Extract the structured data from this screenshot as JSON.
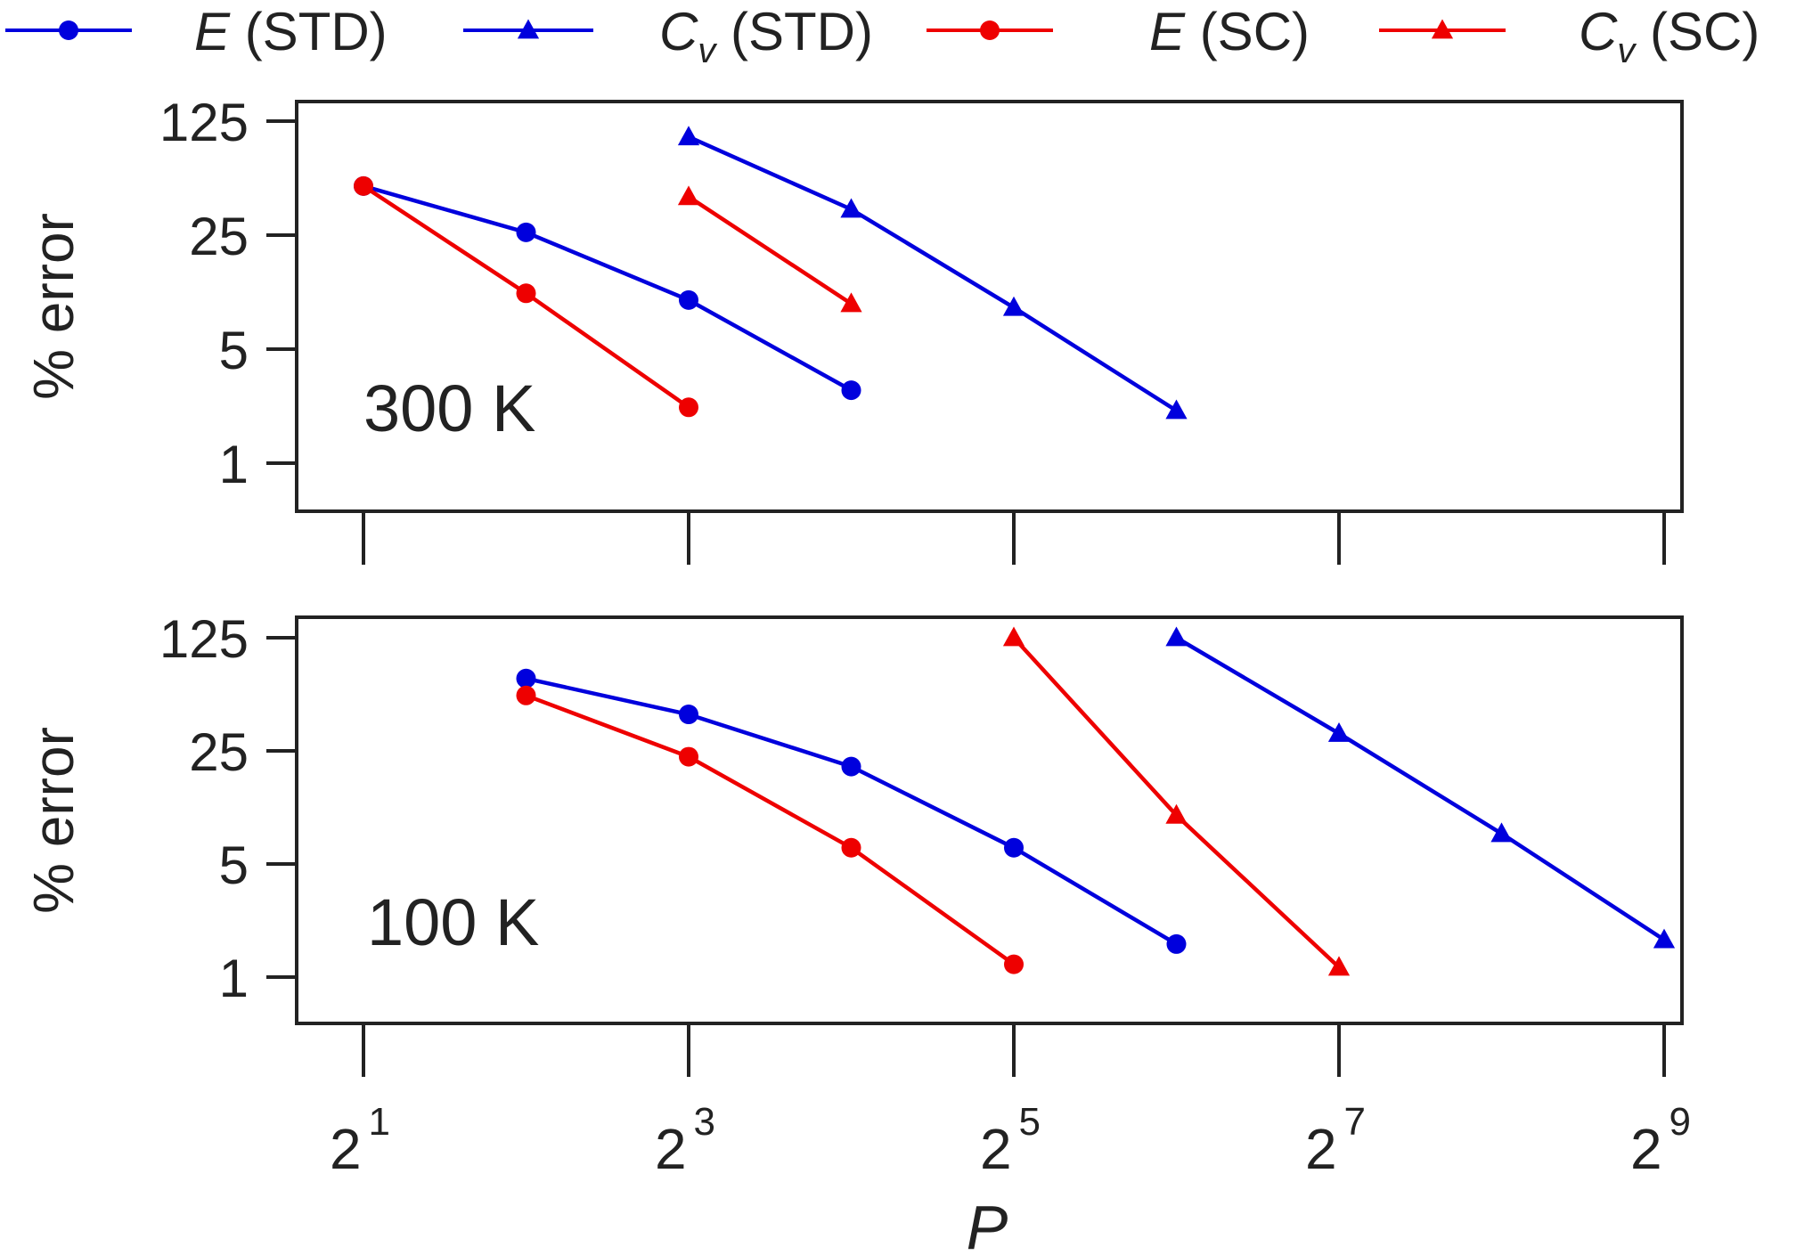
{
  "legend": {
    "placement": "top",
    "entries": [
      {
        "var": "E",
        "sub": "",
        "tag": "(STD)",
        "color": "#0000dd",
        "marker": "circle"
      },
      {
        "var": "C",
        "sub": "v",
        "tag": "(STD)",
        "color": "#0000dd",
        "marker": "triangle"
      },
      {
        "var": "E",
        "sub": "",
        "tag": "(SC)",
        "color": "#ee0000",
        "marker": "circle"
      },
      {
        "var": "C",
        "sub": "v",
        "tag": "(SC)",
        "color": "#ee0000",
        "marker": "triangle"
      }
    ]
  },
  "xlabel": "P",
  "xticks": [
    {
      "base": "2",
      "exp": "1",
      "value": 2
    },
    {
      "base": "2",
      "exp": "3",
      "value": 8
    },
    {
      "base": "2",
      "exp": "5",
      "value": 32
    },
    {
      "base": "2",
      "exp": "7",
      "value": 128
    },
    {
      "base": "2",
      "exp": "9",
      "value": 512
    }
  ],
  "chart_data": [
    {
      "type": "line",
      "annotation": "300 K",
      "ylabel": "% error",
      "xscale": "log2",
      "yscale": "log5",
      "xlim": [
        2,
        512
      ],
      "ylim": [
        0.67,
        187
      ],
      "yticks": [
        1,
        5,
        25,
        125
      ],
      "ytick_labels": [
        "1",
        "5",
        "25",
        "125"
      ],
      "grid": false,
      "series": [
        {
          "name": "E (STD)",
          "color": "#0000dd",
          "marker": "circle",
          "x": [
            2,
            4,
            8,
            16
          ],
          "y": [
            50,
            26,
            10,
            2.8
          ]
        },
        {
          "name": "Cv (STD)",
          "color": "#0000dd",
          "marker": "triangle",
          "x": [
            8,
            16,
            32,
            64
          ],
          "y": [
            100,
            36,
            9,
            2.1
          ]
        },
        {
          "name": "E (SC)",
          "color": "#ee0000",
          "marker": "circle",
          "x": [
            2,
            4,
            8
          ],
          "y": [
            50,
            11,
            2.2
          ]
        },
        {
          "name": "Cv (SC)",
          "color": "#ee0000",
          "marker": "triangle",
          "x": [
            8,
            16
          ],
          "y": [
            43,
            9.5
          ]
        }
      ]
    },
    {
      "type": "line",
      "annotation": "100 K",
      "ylabel": "% error",
      "xscale": "log2",
      "yscale": "log5",
      "xlim": [
        2,
        512
      ],
      "ylim": [
        0.67,
        187
      ],
      "yticks": [
        1,
        5,
        25,
        125
      ],
      "ytick_labels": [
        "1",
        "5",
        "25",
        "125"
      ],
      "grid": false,
      "series": [
        {
          "name": "E (STD)",
          "color": "#0000dd",
          "marker": "circle",
          "x": [
            4,
            8,
            16,
            32,
            64
          ],
          "y": [
            70,
            42,
            20,
            6.3,
            1.6
          ]
        },
        {
          "name": "Cv (STD)",
          "color": "#0000dd",
          "marker": "triangle",
          "x": [
            64,
            128,
            256,
            512
          ],
          "y": [
            125,
            32,
            7.7,
            1.7
          ]
        },
        {
          "name": "E (SC)",
          "color": "#ee0000",
          "marker": "circle",
          "x": [
            4,
            8,
            16,
            32
          ],
          "y": [
            55,
            23,
            6.3,
            1.2
          ]
        },
        {
          "name": "Cv (SC)",
          "color": "#ee0000",
          "marker": "triangle",
          "x": [
            32,
            64,
            128
          ],
          "y": [
            125,
            10,
            1.15
          ]
        }
      ]
    }
  ]
}
